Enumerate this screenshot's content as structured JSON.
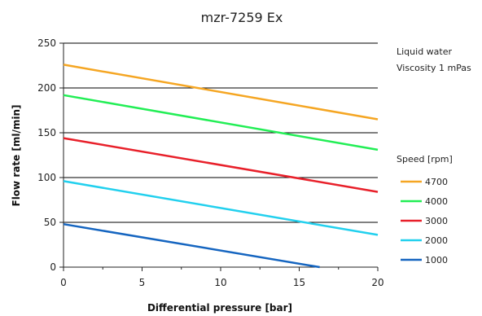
{
  "chart_data": {
    "type": "line",
    "title": "mzr-7259 Ex",
    "xlabel": "Differential pressure [bar]",
    "ylabel": "Flow rate [ml/min]",
    "xlim": [
      0,
      20
    ],
    "ylim": [
      0,
      250
    ],
    "xticks": [
      0,
      5,
      10,
      15,
      20
    ],
    "yticks": [
      0,
      50,
      100,
      150,
      200,
      250
    ],
    "grid": "horizontal",
    "notes": [
      "Liquid water",
      "Viscosity 1 mPas"
    ],
    "legend_title": "Speed [rpm]",
    "legend_position": "right",
    "series": [
      {
        "name": "4700",
        "color": "#f5a623",
        "x": [
          0,
          20
        ],
        "y": [
          226,
          165
        ]
      },
      {
        "name": "4000",
        "color": "#22ee55",
        "x": [
          0,
          20
        ],
        "y": [
          192,
          131
        ]
      },
      {
        "name": "3000",
        "color": "#e8202a",
        "x": [
          0,
          20
        ],
        "y": [
          144,
          84
        ]
      },
      {
        "name": "2000",
        "color": "#22d0ee",
        "x": [
          0,
          20
        ],
        "y": [
          96,
          36
        ]
      },
      {
        "name": "1000",
        "color": "#1565c0",
        "x": [
          0,
          16.3
        ],
        "y": [
          48,
          0
        ]
      }
    ]
  }
}
